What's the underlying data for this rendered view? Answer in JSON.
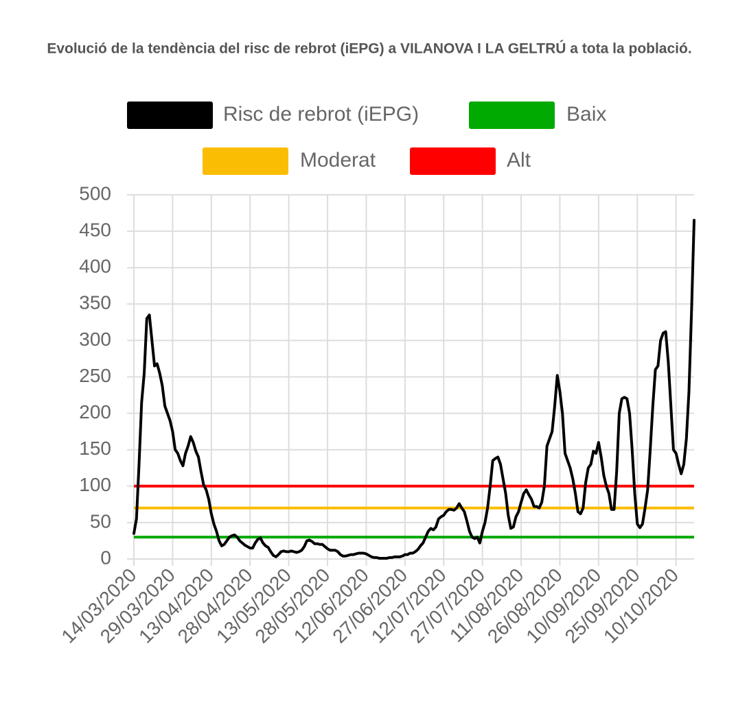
{
  "chart_data": {
    "type": "line",
    "title": "Evolució de la tendència del risc de rebrot (iEPG) a VILANOVA I LA GELTRÚ a tota la població.",
    "categories": [
      "14/03/2020",
      null,
      null,
      null,
      null,
      null,
      null,
      null,
      null,
      null,
      null,
      null,
      null,
      null,
      null,
      "29/03/2020",
      null,
      null,
      null,
      null,
      null,
      null,
      null,
      null,
      null,
      null,
      null,
      null,
      null,
      null,
      "13/04/2020",
      null,
      null,
      null,
      null,
      null,
      null,
      null,
      null,
      null,
      null,
      null,
      null,
      null,
      null,
      "28/04/2020",
      null,
      null,
      null,
      null,
      null,
      null,
      null,
      null,
      null,
      null,
      null,
      null,
      null,
      null,
      "13/05/2020",
      null,
      null,
      null,
      null,
      null,
      null,
      null,
      null,
      null,
      null,
      null,
      null,
      null,
      null,
      "28/05/2020",
      null,
      null,
      null,
      null,
      null,
      null,
      null,
      null,
      null,
      null,
      null,
      null,
      null,
      null,
      "12/06/2020",
      null,
      null,
      null,
      null,
      null,
      null,
      null,
      null,
      null,
      null,
      null,
      null,
      null,
      null,
      "27/06/2020",
      null,
      null,
      null,
      null,
      null,
      null,
      null,
      null,
      null,
      null,
      null,
      null,
      null,
      null,
      "12/07/2020",
      null,
      null,
      null,
      null,
      null,
      null,
      null,
      null,
      null,
      null,
      null,
      null,
      null,
      null,
      "27/07/2020",
      null,
      null,
      null,
      null,
      null,
      null,
      null,
      null,
      null,
      null,
      null,
      null,
      null,
      null,
      "11/08/2020",
      null,
      null,
      null,
      null,
      null,
      null,
      null,
      null,
      null,
      null,
      null,
      null,
      null,
      null,
      "26/08/2020",
      null,
      null,
      null,
      null,
      null,
      null,
      null,
      null,
      null,
      null,
      null,
      null,
      null,
      null,
      "10/09/2020",
      null,
      null,
      null,
      null,
      null,
      null,
      null,
      null,
      null,
      null,
      null,
      null,
      null,
      null,
      "25/09/2020",
      null,
      null,
      null,
      null,
      null,
      null,
      null,
      null,
      null,
      null,
      null,
      null,
      null,
      null,
      "10/10/2020",
      null,
      null,
      null,
      null,
      null,
      null,
      null
    ],
    "series": [
      {
        "name": "Risc de rebrot (iEPG)",
        "color": "#000000",
        "values": [
          35,
          55,
          130,
          215,
          255,
          330,
          335,
          300,
          265,
          268,
          255,
          238,
          210,
          200,
          190,
          175,
          150,
          145,
          135,
          128,
          145,
          155,
          168,
          160,
          148,
          140,
          120,
          102,
          95,
          82,
          62,
          48,
          38,
          25,
          18,
          20,
          25,
          30,
          32,
          33,
          30,
          25,
          22,
          19,
          17,
          15,
          15,
          22,
          27,
          29,
          22,
          18,
          16,
          10,
          5,
          3,
          6,
          10,
          11,
          10,
          10,
          11,
          10,
          9,
          10,
          12,
          17,
          25,
          26,
          24,
          21,
          21,
          20,
          20,
          17,
          14,
          12,
          12,
          12,
          10,
          6,
          4,
          4,
          5,
          6,
          6,
          7,
          8,
          8,
          8,
          7,
          5,
          3,
          2,
          2,
          1,
          1,
          1,
          1,
          2,
          2,
          3,
          3,
          3,
          4,
          6,
          6,
          8,
          8,
          10,
          13,
          18,
          22,
          30,
          38,
          42,
          40,
          44,
          55,
          58,
          60,
          65,
          68,
          68,
          67,
          70,
          76,
          70,
          65,
          52,
          38,
          30,
          28,
          30,
          22,
          38,
          50,
          70,
          100,
          135,
          138,
          140,
          130,
          110,
          90,
          60,
          42,
          44,
          58,
          65,
          78,
          90,
          95,
          88,
          82,
          72,
          72,
          70,
          78,
          100,
          155,
          165,
          175,
          210,
          252,
          230,
          200,
          145,
          135,
          125,
          110,
          90,
          65,
          62,
          70,
          105,
          125,
          130,
          148,
          145,
          160,
          140,
          115,
          100,
          90,
          68,
          68,
          120,
          200,
          220,
          222,
          220,
          200,
          150,
          90,
          48,
          43,
          48,
          70,
          95,
          150,
          210,
          260,
          265,
          300,
          310,
          312,
          270,
          210,
          150,
          145,
          130,
          117,
          130,
          165,
          230,
          340,
          465
        ]
      }
    ],
    "thresholds": [
      {
        "name": "Baix",
        "color": "#00aa00",
        "value": 30
      },
      {
        "name": "Moderat",
        "color": "#fbbc04",
        "value": 70
      },
      {
        "name": "Alt",
        "color": "#ff0000",
        "value": 100
      }
    ],
    "ylim": [
      0,
      500
    ],
    "yticks": [
      0,
      50,
      100,
      150,
      200,
      250,
      300,
      350,
      400,
      450,
      500
    ],
    "grid": true
  }
}
